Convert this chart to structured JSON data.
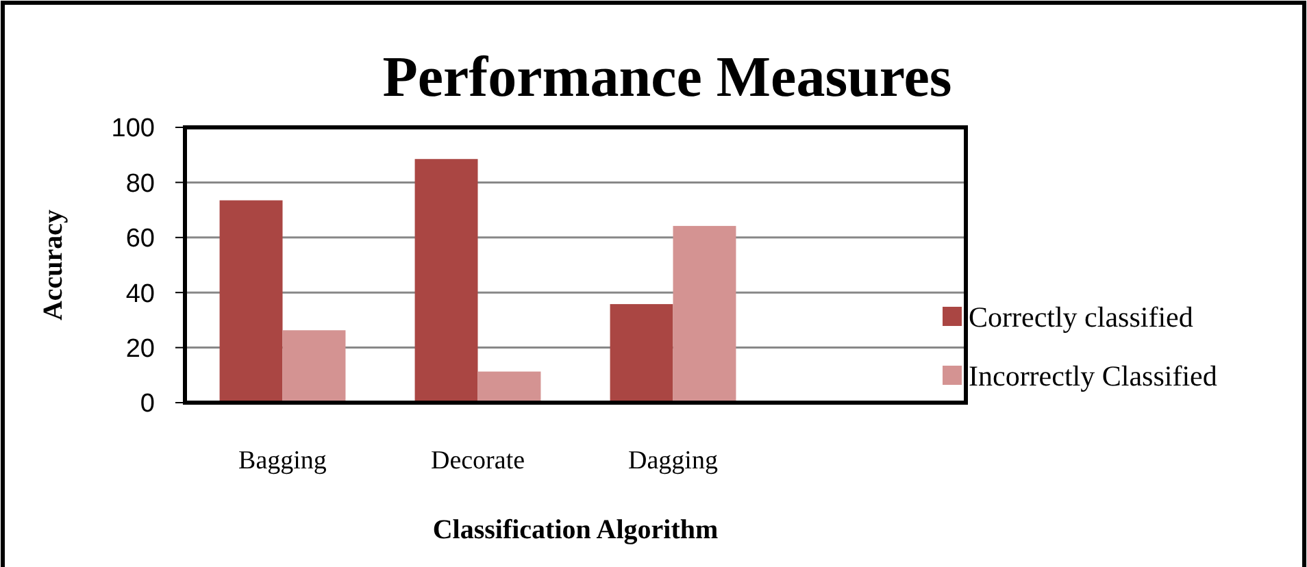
{
  "chart_data": {
    "type": "bar",
    "title": "Performance Measures",
    "xlabel": "Classification Algorithm",
    "ylabel": "Accuracy",
    "categories": [
      "Bagging",
      "Decorate",
      "Dagging",
      null
    ],
    "series": [
      {
        "name": "Correctly classified",
        "color": "#aa4643",
        "values": [
          73.5,
          88.5,
          35.8,
          null
        ]
      },
      {
        "name": "Incorrectly Classified",
        "color": "#d49392",
        "values": [
          26.3,
          11.3,
          64.2,
          null
        ]
      }
    ],
    "ylim": [
      0,
      100
    ],
    "yticks": [
      0,
      20,
      40,
      60,
      80,
      100
    ],
    "grid": "y",
    "legend": "right"
  }
}
